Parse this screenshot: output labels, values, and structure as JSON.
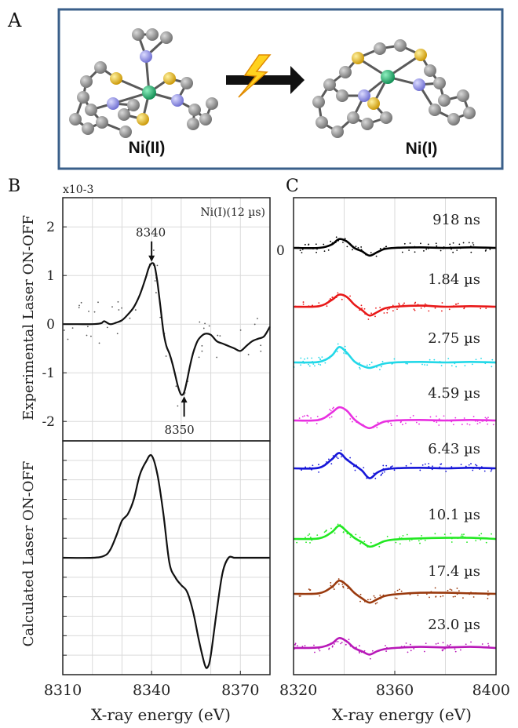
{
  "panel_labels": {
    "a": "A",
    "b": "B",
    "c": "C"
  },
  "schematic": {
    "left_label": "Ni(II)",
    "right_label": "Ni(I)",
    "atom_colors": {
      "carbon": "#8a8a8a",
      "sulfur": "#e6b422",
      "nitrogen": "#8f8fe6",
      "nickel": "#1aa86a"
    },
    "arrow_icon": "lightning-arrow-icon",
    "frame_color": "#3a5f8a"
  },
  "chart_data": [
    {
      "id": "B-top",
      "type": "line",
      "title": "",
      "xlabel": "",
      "ylabel": "Experimental Laser ON-OFF",
      "y_scale_label": "x10-3",
      "xlim": [
        8310,
        8380
      ],
      "ylim": [
        -2.4,
        2.6
      ],
      "yticks": [
        "2",
        "1",
        "0",
        "-1",
        "-2"
      ],
      "ytick_values": [
        2,
        1,
        0,
        -1,
        -2
      ],
      "grid": true,
      "inset_label": "Ni(I)(12 µs)",
      "annotations": [
        {
          "text": "8340",
          "x": 8340,
          "y": 1.25,
          "arrow": "down"
        },
        {
          "text": "8350",
          "x": 8351,
          "y": -1.45,
          "arrow": "up"
        }
      ],
      "series": [
        {
          "color": "#111111",
          "x": [
            8310,
            8315,
            8320,
            8323,
            8324,
            8326,
            8328,
            8330,
            8332,
            8334,
            8336,
            8338,
            8339,
            8340,
            8341,
            8342,
            8343,
            8344,
            8345,
            8346,
            8347,
            8348,
            8349,
            8350,
            8351,
            8352,
            8353,
            8354,
            8355,
            8356,
            8358,
            8360,
            8362,
            8364,
            8366,
            8368,
            8370,
            8372,
            8374,
            8376,
            8378,
            8380
          ],
          "y": [
            0.0,
            0.0,
            0.0,
            0.02,
            0.06,
            0.0,
            0.03,
            0.08,
            0.2,
            0.35,
            0.6,
            0.95,
            1.15,
            1.25,
            1.2,
            0.85,
            0.35,
            -0.15,
            -0.45,
            -0.6,
            -0.8,
            -1.05,
            -1.3,
            -1.45,
            -1.4,
            -1.15,
            -0.85,
            -0.6,
            -0.42,
            -0.3,
            -0.2,
            -0.22,
            -0.35,
            -0.4,
            -0.45,
            -0.5,
            -0.55,
            -0.45,
            -0.35,
            -0.3,
            -0.25,
            -0.05
          ]
        }
      ]
    },
    {
      "id": "B-bottom",
      "type": "line",
      "title": "",
      "xlabel": "X-ray energy (eV)",
      "ylabel": "Calculated Laser ON-OFF",
      "xlim": [
        8310,
        8380
      ],
      "xticks": [
        "8310",
        "8340",
        "8370"
      ],
      "xtick_values": [
        8310,
        8340,
        8370
      ],
      "ylim": [
        -1.2,
        1.2
      ],
      "grid": true,
      "series": [
        {
          "color": "#111111",
          "x": [
            8310,
            8320,
            8324,
            8326,
            8328,
            8330,
            8332,
            8334,
            8336,
            8338,
            8340,
            8342,
            8344,
            8346,
            8348,
            8350,
            8352,
            8354,
            8356,
            8358,
            8359,
            8360,
            8362,
            8364,
            8366,
            8368,
            8370,
            8380
          ],
          "y": [
            0.0,
            0.0,
            0.02,
            0.08,
            0.22,
            0.38,
            0.45,
            0.6,
            0.85,
            0.98,
            1.05,
            0.85,
            0.45,
            -0.05,
            -0.2,
            -0.28,
            -0.35,
            -0.55,
            -0.85,
            -1.1,
            -1.12,
            -1.0,
            -0.55,
            -0.15,
            0.0,
            0.0,
            0.0,
            0.0
          ]
        }
      ]
    },
    {
      "id": "C",
      "type": "line",
      "title": "",
      "xlabel": "X-ray energy (eV)",
      "xlim": [
        8320,
        8400
      ],
      "xticks": [
        "8320",
        "8360",
        "8400"
      ],
      "xtick_values": [
        8320,
        8360,
        8400
      ],
      "zero_label": "0",
      "grid": true,
      "series": [
        {
          "name": "918 ns",
          "color": "#000000",
          "x": [
            8320,
            8330,
            8335,
            8338,
            8341,
            8344,
            8347,
            8350,
            8353,
            8356,
            8360,
            8370,
            8380,
            8390,
            8400
          ],
          "y": [
            0.0,
            0.0,
            0.3,
            0.8,
            0.6,
            0.0,
            -0.3,
            -0.7,
            -0.4,
            -0.1,
            0.0,
            0.05,
            0.0,
            0.05,
            0.0
          ]
        },
        {
          "name": "1.84 µs",
          "color": "#e81818",
          "x": [
            8320,
            8330,
            8335,
            8338,
            8341,
            8344,
            8347,
            8350,
            8353,
            8356,
            8360,
            8370,
            8380,
            8390,
            8400
          ],
          "y": [
            0.0,
            0.05,
            0.6,
            1.1,
            0.9,
            0.2,
            -0.3,
            -0.8,
            -0.5,
            -0.15,
            0.0,
            0.1,
            0.0,
            0.05,
            0.0
          ]
        },
        {
          "name": "2.75 µs",
          "color": "#22d8e8",
          "x": [
            8320,
            8330,
            8335,
            8338,
            8341,
            8344,
            8347,
            8350,
            8353,
            8356,
            8360,
            8370,
            8380,
            8390,
            8400
          ],
          "y": [
            0.0,
            0.05,
            0.6,
            1.4,
            0.9,
            0.1,
            -0.3,
            -0.5,
            -0.3,
            -0.1,
            0.0,
            0.05,
            0.0,
            0.05,
            0.0
          ]
        },
        {
          "name": "4.59 µs",
          "color": "#e830e0",
          "x": [
            8320,
            8330,
            8335,
            8338,
            8341,
            8344,
            8347,
            8350,
            8353,
            8356,
            8360,
            8370,
            8380,
            8390,
            8400
          ],
          "y": [
            0.0,
            0.05,
            0.7,
            1.2,
            0.9,
            0.1,
            -0.4,
            -0.7,
            -0.4,
            -0.1,
            0.0,
            0.05,
            0.0,
            0.05,
            0.0
          ]
        },
        {
          "name": "6.43 µs",
          "color": "#1616d8",
          "x": [
            8320,
            8330,
            8335,
            8338,
            8341,
            8344,
            8347,
            8350,
            8353,
            8356,
            8360,
            8370,
            8380,
            8390,
            8400
          ],
          "y": [
            0.0,
            0.05,
            0.8,
            1.4,
            0.8,
            0.3,
            -0.2,
            -0.9,
            -0.4,
            -0.1,
            0.0,
            0.05,
            0.0,
            0.05,
            0.0
          ]
        },
        {
          "name": "10.1 µs",
          "color": "#22e822",
          "x": [
            8320,
            8330,
            8335,
            8338,
            8341,
            8344,
            8347,
            8350,
            8353,
            8356,
            8360,
            8370,
            8380,
            8390,
            8400
          ],
          "y": [
            0.0,
            0.05,
            0.6,
            1.2,
            0.7,
            0.1,
            -0.3,
            -0.7,
            -0.5,
            -0.2,
            -0.05,
            0.05,
            0.1,
            0.1,
            0.0
          ]
        },
        {
          "name": "17.4 µs",
          "color": "#9a3a0e",
          "x": [
            8320,
            8330,
            8335,
            8338,
            8341,
            8344,
            8347,
            8350,
            8353,
            8356,
            8360,
            8370,
            8380,
            8390,
            8400
          ],
          "y": [
            0.0,
            0.05,
            0.6,
            1.2,
            0.8,
            0.1,
            -0.4,
            -0.8,
            -0.5,
            -0.2,
            -0.05,
            0.1,
            0.1,
            0.05,
            0.0
          ]
        },
        {
          "name": "23.0 µs",
          "color": "#b818b8",
          "x": [
            8320,
            8330,
            8335,
            8338,
            8341,
            8344,
            8347,
            8350,
            8353,
            8356,
            8360,
            8370,
            8380,
            8390,
            8400
          ],
          "y": [
            0.0,
            0.05,
            0.4,
            0.9,
            0.6,
            0.0,
            -0.3,
            -0.6,
            -0.3,
            -0.1,
            0.0,
            0.1,
            0.05,
            0.1,
            0.0
          ]
        }
      ]
    }
  ]
}
